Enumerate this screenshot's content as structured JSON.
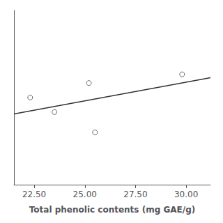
{
  "chart_data": {
    "type": "scatter",
    "xlabel": "Total phenolic contents (mg GAE/g)",
    "x": [
      22.3,
      23.5,
      25.2,
      25.5,
      29.8
    ],
    "series": [
      {
        "type": "scatter",
        "color": "#444444",
        "marker": "open circle",
        "values": [
          0.6,
          0.55,
          0.65,
          0.48,
          0.68
        ]
      },
      {
        "type": "line",
        "color": "#333333",
        "line_style": "solid",
        "x": [
          21.5,
          31.2
        ],
        "values": [
          0.5435,
          0.6686
        ]
      }
    ],
    "xlim": [
      21.5,
      31.2
    ],
    "ylim": [
      0.3,
      0.9
    ],
    "xticks": [
      {
        "value": 22.5,
        "label": "22.50"
      },
      {
        "value": 25.0,
        "label": "25.00"
      },
      {
        "value": 27.5,
        "label": "27.50"
      },
      {
        "value": 30.0,
        "label": "30.00"
      }
    ],
    "tick_labels": "x",
    "grid": false
  }
}
